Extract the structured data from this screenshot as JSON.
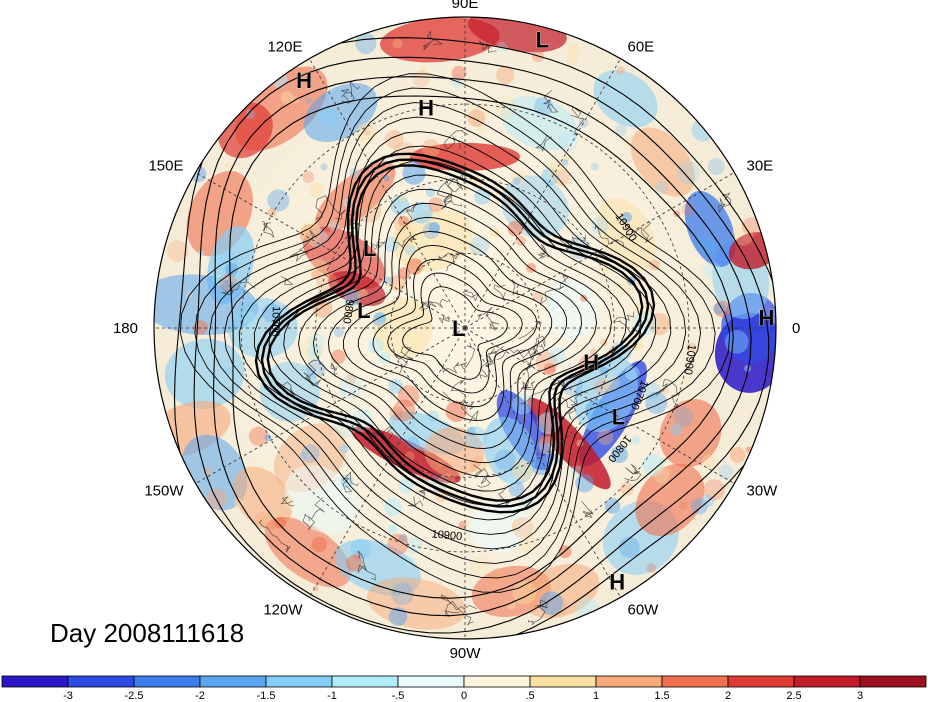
{
  "title": "Day 2008111618",
  "longitude_labels": [
    {
      "text": "90E",
      "angle": 90
    },
    {
      "text": "60E",
      "angle": 60
    },
    {
      "text": "30E",
      "angle": 30
    },
    {
      "text": "0",
      "angle": 0
    },
    {
      "text": "30W",
      "angle": -30
    },
    {
      "text": "60W",
      "angle": -60
    },
    {
      "text": "90W",
      "angle": -90
    },
    {
      "text": "120W",
      "angle": -120
    },
    {
      "text": "150W",
      "angle": -150
    },
    {
      "text": "180",
      "angle": 180
    },
    {
      "text": "150E",
      "angle": 150
    },
    {
      "text": "120E",
      "angle": 120
    }
  ],
  "pressure_centers": [
    {
      "text": "H",
      "lon": 123,
      "r_frac": 0.95
    },
    {
      "text": "L",
      "lon": 75,
      "r_frac": 0.96
    },
    {
      "text": "H",
      "lon": 100,
      "r_frac": 0.72
    },
    {
      "text": "L",
      "lon": 140,
      "r_frac": 0.4
    },
    {
      "text": "L",
      "lon": 170,
      "r_frac": 0.33
    },
    {
      "text": "L",
      "lon": 180,
      "r_frac": 0.02
    },
    {
      "text": "H",
      "lon": 2,
      "r_frac": 0.97
    },
    {
      "text": "H",
      "lon": -15,
      "r_frac": 0.42
    },
    {
      "text": "L",
      "lon": -30,
      "r_frac": 0.57
    },
    {
      "text": "H",
      "lon": -59,
      "r_frac": 0.95
    }
  ],
  "contour_labels": [
    {
      "text": "10700",
      "lon": 178,
      "r_frac": 0.62
    },
    {
      "text": "9800",
      "lon": 172,
      "r_frac": 0.39
    },
    {
      "text": "10900",
      "lon": 32,
      "r_frac": 0.6
    },
    {
      "text": "10900",
      "lon": -8,
      "r_frac": 0.72
    },
    {
      "text": "10700",
      "lon": -21,
      "r_frac": 0.59
    },
    {
      "text": "10800",
      "lon": -38,
      "r_frac": 0.62
    },
    {
      "text": "10900",
      "lon": -95,
      "r_frac": 0.68
    }
  ],
  "colorbar": {
    "labels": [
      "-3",
      "-2.5",
      "-2",
      "-1.5",
      "-1",
      "-.5",
      "0",
      ".5",
      "1",
      "1.5",
      "2",
      "2.5",
      "3"
    ],
    "colors": [
      "#2a17c9",
      "#2f4be6",
      "#3c7cec",
      "#5aa6f0",
      "#84cdf6",
      "#b0ecfa",
      "#e9fbfd",
      "#fdf6dc",
      "#fbe0a4",
      "#f6a97a",
      "#f0704f",
      "#e03a35",
      "#c21b2a",
      "#9c1020"
    ]
  }
}
